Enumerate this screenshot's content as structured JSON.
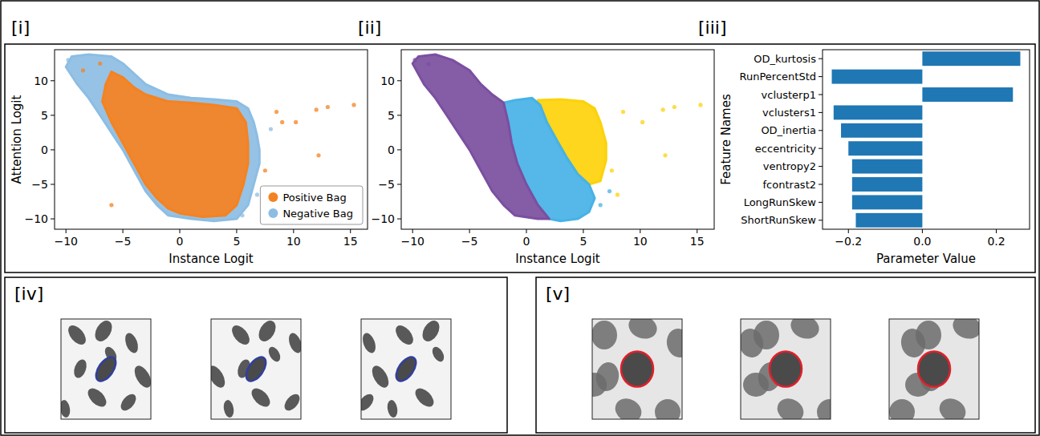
{
  "chart_data": [
    {
      "type": "scatter",
      "title": "[i]",
      "x_label": "Instance Logit",
      "y_label": "Attention Logit",
      "xlim": [
        -11,
        16.5
      ],
      "ylim": [
        -11.5,
        14.5
      ],
      "xticks": [
        {
          "value": -10,
          "label": "−10"
        },
        {
          "value": -5,
          "label": "−5"
        },
        0,
        5,
        10,
        15
      ],
      "yticks": [
        {
          "value": -10,
          "label": "−10"
        },
        {
          "value": -5,
          "label": "−5"
        },
        0,
        5,
        10
      ],
      "legend": "lower right",
      "series": [
        {
          "name": "Positive Bag",
          "type": "area",
          "color": "#f58220",
          "x": [
            -6.5,
            -6,
            -5,
            -4,
            -3,
            -1,
            1,
            3,
            5,
            5.8,
            6,
            6,
            5.6,
            5,
            4,
            2,
            0,
            -1,
            -2,
            -3,
            -4,
            -5,
            -6,
            -6.8
          ],
          "y": [
            9.5,
            11.3,
            10.5,
            9,
            8,
            7,
            6.8,
            6.5,
            6,
            4,
            1,
            -2,
            -5,
            -8,
            -9.5,
            -9.7,
            -9.2,
            -8.5,
            -7,
            -5,
            -2,
            1,
            4,
            7
          ],
          "outlier_x": [
            7.5,
            8.5,
            9,
            10.2,
            12,
            12.2,
            13,
            15.3,
            -7,
            -8.5,
            -6
          ],
          "outlier_y": [
            -3,
            5.5,
            4,
            4,
            5.8,
            -0.8,
            6.2,
            6.5,
            12.5,
            11.5,
            -8
          ]
        },
        {
          "name": "Negative Bag",
          "type": "area",
          "color": "#8dbde3",
          "x": [
            -9.5,
            -8,
            -6,
            -5,
            -4,
            -3,
            -1,
            1,
            3,
            5,
            6,
            6.5,
            6.8,
            7,
            7,
            6.5,
            6,
            5,
            3,
            1,
            -1,
            -2,
            -3,
            -4,
            -5,
            -6,
            -7,
            -8,
            -9,
            -10
          ],
          "y": [
            13.5,
            13.8,
            13.5,
            12.5,
            11,
            9.5,
            8,
            7.5,
            7.3,
            7,
            6,
            4,
            2,
            0,
            -2,
            -5,
            -8,
            -10,
            -10.3,
            -10,
            -9.5,
            -8,
            -6,
            -3,
            0,
            2.5,
            5,
            7.5,
            9.5,
            12
          ],
          "outlier_x": [
            -9.8,
            6.8,
            5.5,
            8
          ],
          "outlier_y": [
            13,
            -6.5,
            -9.5,
            3
          ]
        }
      ]
    },
    {
      "type": "scatter",
      "title": "[ii]",
      "x_label": "Instance Logit",
      "xlim": [
        -11,
        16.5
      ],
      "ylim": [
        -11.5,
        14.5
      ],
      "xticks": [
        {
          "value": -10,
          "label": "−10"
        },
        {
          "value": -5,
          "label": "−5"
        },
        0,
        5,
        10,
        15
      ],
      "yticks": [
        {
          "value": -10,
          "label": "−10"
        },
        {
          "value": -5,
          "label": "−5"
        },
        0,
        5,
        10
      ],
      "series": [
        {
          "type": "area",
          "color": "#7b4fa0",
          "x": [
            -9.5,
            -8,
            -6.5,
            -5,
            -4,
            -3,
            -2,
            -1.6,
            -1.3,
            -0.8,
            0,
            1,
            2,
            1,
            -1,
            -2,
            -3,
            -4,
            -5,
            -6,
            -7,
            -8,
            -9,
            -10
          ],
          "y": [
            13.5,
            13.8,
            13,
            11.5,
            9.5,
            8,
            6.8,
            4,
            1,
            -2,
            -5,
            -8,
            -10,
            -10,
            -9.5,
            -8,
            -6,
            -3,
            0,
            2.5,
            5,
            7.5,
            9.5,
            12.5
          ],
          "outlier_x": [
            -9.8,
            -8.6
          ],
          "outlier_y": [
            13,
            12.4
          ]
        },
        {
          "type": "area",
          "color": "#47b2e6",
          "x": [
            -2,
            -1,
            0.5,
            1.2,
            1.8,
            2.8,
            3.5,
            4.5,
            5.5,
            6,
            5.5,
            4.5,
            3,
            2,
            1,
            0,
            -0.8,
            -1.3,
            -1.6
          ],
          "y": [
            6.8,
            7.2,
            7.5,
            6.5,
            4,
            1,
            -1,
            -3.5,
            -5,
            -7,
            -9,
            -10,
            -10.3,
            -10,
            -8,
            -5,
            -2,
            1,
            4
          ],
          "outlier_x": [
            6.5,
            7.3
          ],
          "outlier_y": [
            -8,
            -6
          ]
        },
        {
          "type": "area",
          "color": "#fdd20a",
          "x": [
            1,
            3,
            5,
            6,
            6.5,
            7,
            7,
            6.5,
            5.5,
            4.5,
            3.5,
            2.8,
            1.8,
            1.2
          ],
          "y": [
            7.2,
            7.3,
            7,
            6,
            4,
            1,
            -1.5,
            -4.5,
            -5,
            -3.5,
            -1,
            1,
            4,
            6.5
          ],
          "outlier_x": [
            8.5,
            10.2,
            12,
            12.2,
            13,
            15.3,
            8,
            7.5
          ],
          "outlier_y": [
            5.5,
            4,
            5.8,
            -0.8,
            6.2,
            6.5,
            -6.5,
            -3
          ]
        }
      ]
    },
    {
      "type": "bar",
      "title": "[iii]",
      "orientation": "horizontal",
      "color": "#1f77b4",
      "x_label": "Parameter Value",
      "y_label": "Feature Names",
      "categories": [
        "OD_kurtosis",
        "RunPercentStd",
        "vclusterp1",
        "vclusters1",
        "OD_inertia",
        "eccentricity",
        "ventropy2",
        "fcontrast2",
        "LongRunSkew",
        "ShortRunSkew"
      ],
      "values": [
        0.265,
        -0.245,
        0.245,
        -0.24,
        -0.22,
        -0.2,
        -0.19,
        -0.19,
        -0.19,
        -0.18
      ],
      "xlim": [
        -0.27,
        0.29
      ],
      "xticks": [
        {
          "value": -0.2,
          "label": "−0.2"
        },
        {
          "value": 0,
          "label": "0.0"
        },
        {
          "value": 0.2,
          "label": "0.2"
        }
      ]
    }
  ],
  "image_panels": [
    {
      "label": "[iv]",
      "color": "#2f3fa0"
    },
    {
      "label": "[v]",
      "color": "#e0202a"
    }
  ]
}
